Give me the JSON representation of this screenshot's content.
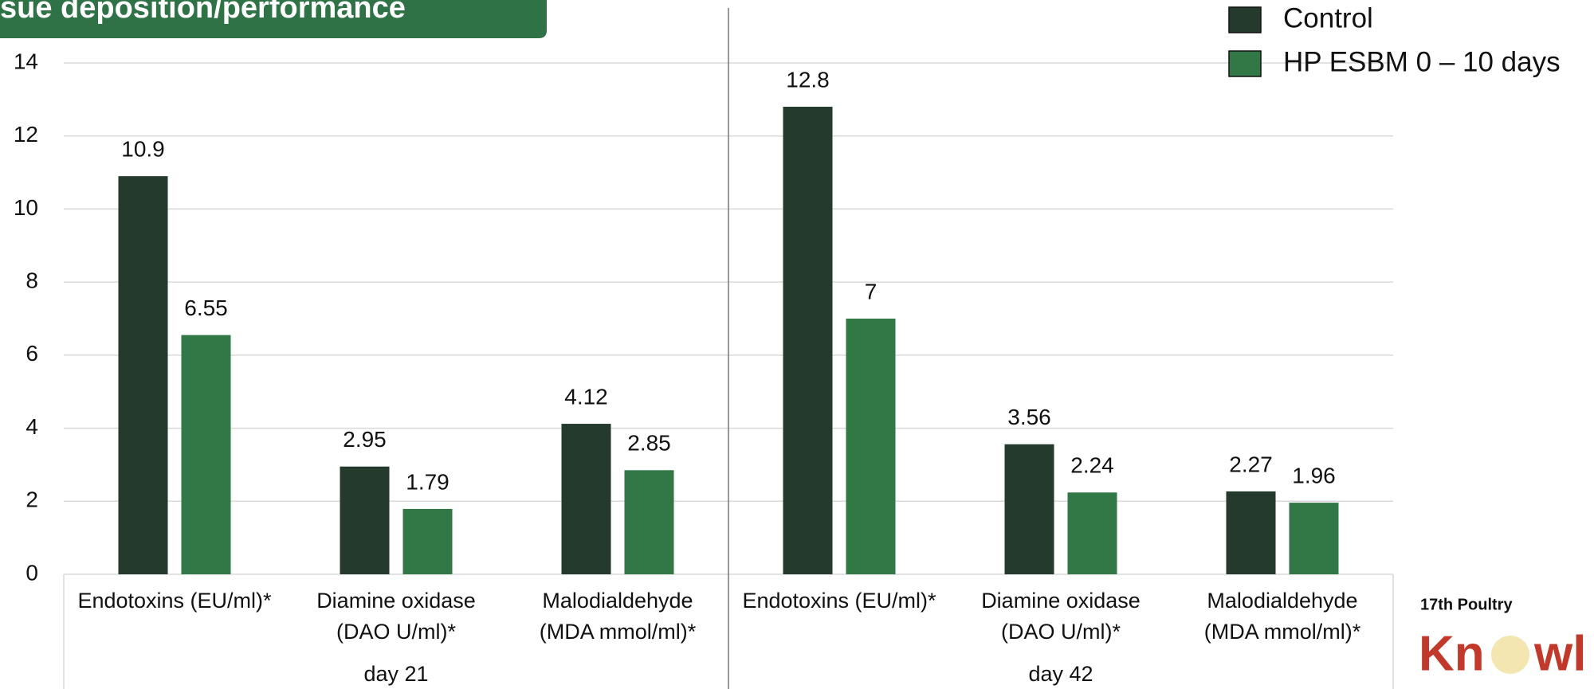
{
  "chart_data": {
    "type": "bar",
    "title": "sue deposition/performance",
    "categories": [
      [
        "Endotoxins (EU/ml)*"
      ],
      [
        "Diamine oxidase",
        "(DAO U/ml)*"
      ],
      [
        "Malodialdehyde",
        "(MDA mmol/ml)*"
      ],
      [
        "Endotoxins (EU/ml)*"
      ],
      [
        "Diamine oxidase",
        "(DAO U/ml)*"
      ],
      [
        "Malodialdehyde",
        "(MDA mmol/ml)*"
      ]
    ],
    "group_labels": [
      "day 21",
      "day 42"
    ],
    "series": [
      {
        "name": "Control",
        "color": "#233a2c",
        "values": [
          10.9,
          2.95,
          4.12,
          12.8,
          3.56,
          2.27
        ]
      },
      {
        "name": "HP ESBM 0 – 10 days",
        "color": "#327847",
        "values": [
          6.55,
          1.79,
          2.85,
          7,
          2.24,
          1.96
        ]
      }
    ],
    "ylim": [
      0,
      14
    ],
    "yticks": [
      0,
      2,
      4,
      6,
      8,
      10,
      12,
      14
    ],
    "grid": true,
    "legend": "top-right",
    "logo": [
      "17th Poultry",
      "Kn",
      "wl"
    ]
  }
}
